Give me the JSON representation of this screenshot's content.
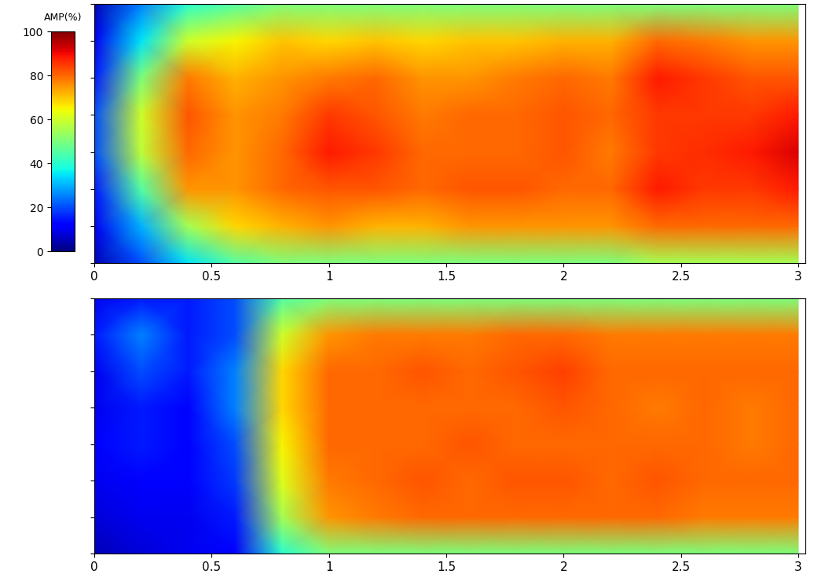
{
  "chart_data": [
    {
      "type": "heatmap",
      "x": [
        0,
        0.2,
        0.4,
        0.6,
        0.8,
        1.0,
        1.2,
        1.4,
        1.6,
        1.8,
        2.0,
        2.2,
        2.4,
        2.6,
        2.8,
        3.0
      ],
      "y": [
        7,
        6,
        5,
        4,
        3,
        2,
        1,
        0
      ],
      "values": [
        [
          5,
          25,
          40,
          45,
          50,
          50,
          50,
          50,
          50,
          50,
          50,
          50,
          50,
          50,
          50,
          50
        ],
        [
          10,
          35,
          60,
          65,
          70,
          68,
          70,
          68,
          70,
          70,
          72,
          72,
          80,
          78,
          75,
          75
        ],
        [
          15,
          50,
          78,
          72,
          75,
          78,
          80,
          75,
          75,
          78,
          80,
          78,
          88,
          85,
          82,
          82
        ],
        [
          20,
          60,
          82,
          75,
          78,
          85,
          82,
          78,
          80,
          80,
          82,
          80,
          85,
          85,
          85,
          88
        ],
        [
          20,
          58,
          80,
          75,
          80,
          88,
          85,
          80,
          80,
          80,
          82,
          78,
          85,
          86,
          88,
          92
        ],
        [
          15,
          45,
          75,
          75,
          80,
          82,
          82,
          80,
          82,
          82,
          80,
          80,
          88,
          85,
          85,
          88
        ],
        [
          10,
          30,
          55,
          68,
          72,
          75,
          72,
          72,
          75,
          75,
          75,
          75,
          80,
          80,
          80,
          80
        ],
        [
          5,
          20,
          35,
          45,
          50,
          50,
          50,
          50,
          50,
          50,
          50,
          50,
          55,
          55,
          55,
          55
        ]
      ],
      "xlim": [
        0,
        3.03
      ],
      "ylim": [
        0,
        7
      ],
      "xticks": [
        0,
        0.5,
        1,
        1.5,
        2,
        2.5,
        3
      ],
      "yticks": [
        0,
        1,
        2,
        3,
        4,
        5,
        6,
        7
      ],
      "tick_labels": "x",
      "colorbar": {
        "label": "AMP(%)",
        "range": [
          0,
          100
        ],
        "ticks": [
          0,
          20,
          40,
          60,
          80,
          100
        ]
      }
    },
    {
      "type": "heatmap",
      "x": [
        0,
        0.2,
        0.4,
        0.6,
        0.8,
        1.0,
        1.2,
        1.4,
        1.6,
        1.8,
        2.0,
        2.2,
        2.4,
        2.6,
        2.8,
        3.0
      ],
      "y": [
        7,
        6,
        5,
        4,
        3,
        2,
        1,
        0
      ],
      "values": [
        [
          10,
          15,
          15,
          20,
          45,
          50,
          50,
          50,
          50,
          50,
          50,
          50,
          50,
          50,
          50,
          50
        ],
        [
          15,
          25,
          15,
          20,
          60,
          75,
          78,
          78,
          78,
          80,
          80,
          78,
          78,
          78,
          78,
          78
        ],
        [
          10,
          20,
          15,
          25,
          68,
          80,
          80,
          82,
          80,
          82,
          84,
          80,
          80,
          80,
          80,
          80
        ],
        [
          10,
          15,
          12,
          25,
          68,
          80,
          80,
          80,
          80,
          80,
          82,
          80,
          78,
          80,
          78,
          80
        ],
        [
          12,
          15,
          12,
          20,
          65,
          80,
          80,
          80,
          82,
          80,
          80,
          80,
          80,
          80,
          78,
          80
        ],
        [
          10,
          12,
          12,
          18,
          62,
          78,
          80,
          82,
          80,
          82,
          82,
          80,
          82,
          80,
          80,
          80
        ],
        [
          8,
          10,
          10,
          15,
          55,
          75,
          78,
          80,
          80,
          80,
          80,
          80,
          80,
          78,
          78,
          78
        ],
        [
          5,
          8,
          10,
          12,
          40,
          50,
          50,
          50,
          50,
          50,
          50,
          50,
          50,
          50,
          50,
          50
        ]
      ],
      "xlim": [
        0,
        3.03
      ],
      "ylim": [
        0,
        7
      ],
      "xticks": [
        0,
        0.5,
        1,
        1.5,
        2,
        2.5,
        3
      ],
      "yticks": [
        0,
        1,
        2,
        3,
        4,
        5,
        6,
        7
      ],
      "tick_labels": "x"
    }
  ]
}
